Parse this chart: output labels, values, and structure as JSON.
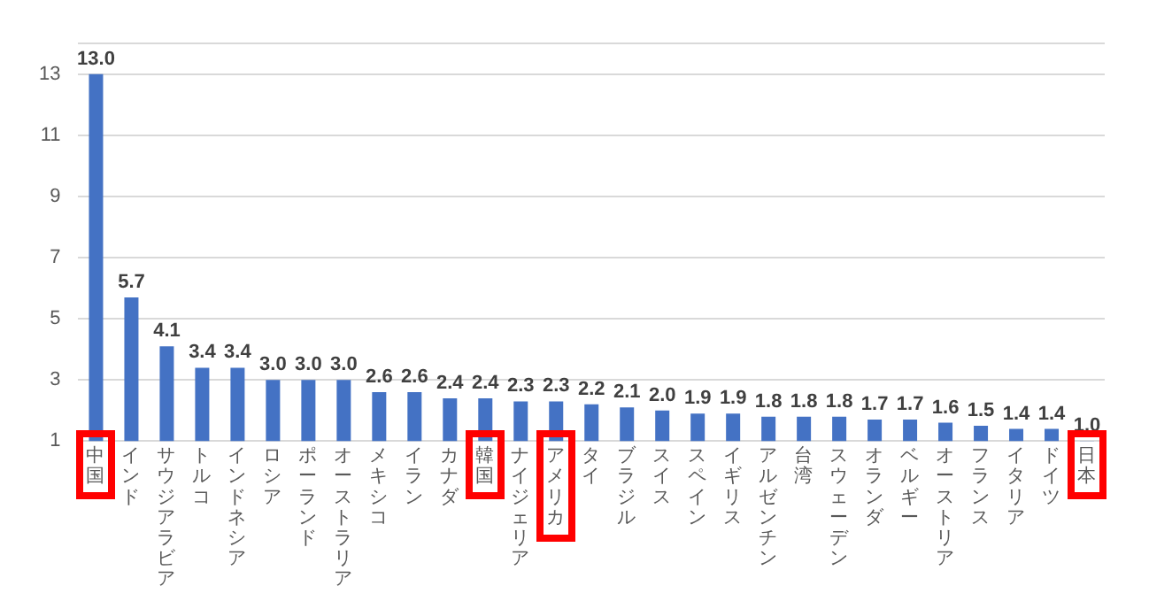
{
  "chart_data": {
    "type": "bar",
    "categories": [
      "中国",
      "インド",
      "サウジアラビア",
      "トルコ",
      "インドネシア",
      "ロシア",
      "ポーランド",
      "オーストラリア",
      "メキシコ",
      "イラン",
      "カナダ",
      "韓国",
      "ナイジェリア",
      "アメリカ",
      "タイ",
      "ブラジル",
      "スイス",
      "スペイン",
      "イギリス",
      "アルゼンチン",
      "台湾",
      "スウェーデン",
      "オランダ",
      "ベルギー",
      "オーストリア",
      "フランス",
      "イタリア",
      "ドイツ",
      "日本"
    ],
    "values": [
      13.0,
      5.7,
      4.1,
      3.4,
      3.4,
      3.0,
      3.0,
      3.0,
      2.6,
      2.6,
      2.4,
      2.4,
      2.3,
      2.3,
      2.2,
      2.1,
      2.0,
      1.9,
      1.9,
      1.8,
      1.8,
      1.8,
      1.7,
      1.7,
      1.6,
      1.5,
      1.4,
      1.4,
      1.0
    ],
    "value_labels": [
      "13.0",
      "5.7",
      "4.1",
      "3.4",
      "3.4",
      "3.0",
      "3.0",
      "3.0",
      "2.6",
      "2.6",
      "2.4",
      "2.4",
      "2.3",
      "2.3",
      "2.2",
      "2.1",
      "2.0",
      "1.9",
      "1.9",
      "1.8",
      "1.8",
      "1.8",
      "1.7",
      "1.7",
      "1.6",
      "1.5",
      "1.4",
      "1.4",
      "1.0"
    ],
    "color": "#4472c4",
    "ylim": [
      1,
      14
    ],
    "yticks": [
      1,
      3,
      5,
      7,
      9,
      11,
      13,
      {
        "value": 14,
        "label": null
      }
    ],
    "grid": "y",
    "legend": false
  }
}
